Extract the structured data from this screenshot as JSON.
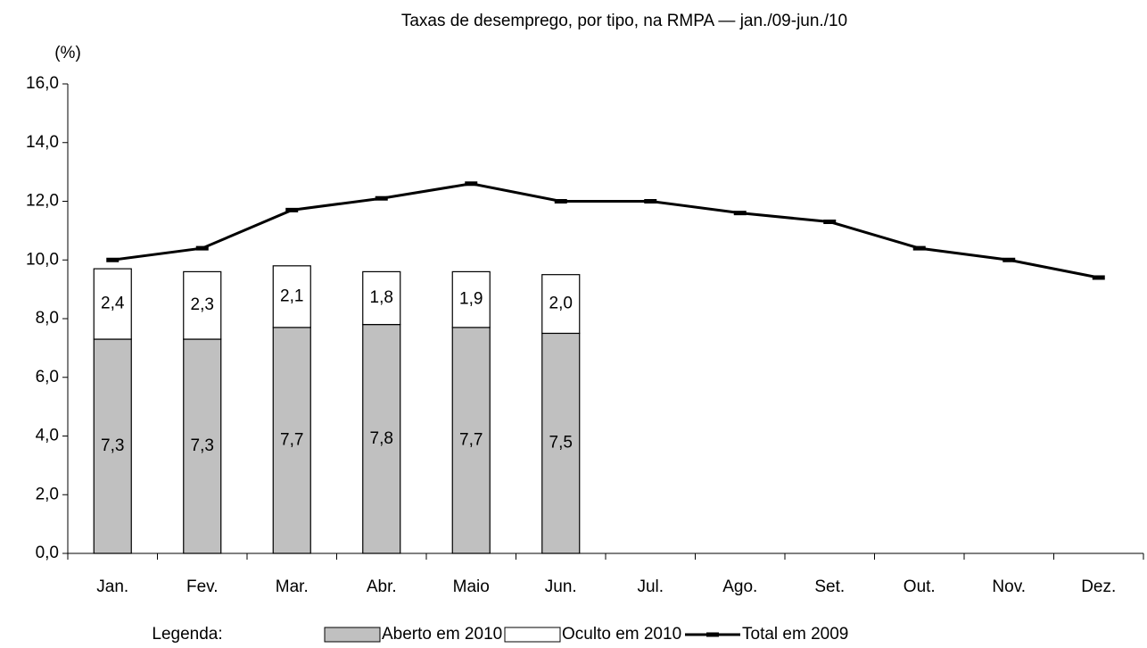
{
  "chart_data": {
    "type": "bar",
    "stacked": true,
    "title": "Taxas de desemprego, por tipo, na RMPA — jan./09-jun./10",
    "y_label": "(%)",
    "legend_title": "Legenda:",
    "legend_position": "bottom",
    "categories": [
      "Jan.",
      "Fev.",
      "Mar.",
      "Abr.",
      "Maio",
      "Jun.",
      "Jul.",
      "Ago.",
      "Set.",
      "Out.",
      "Nov.",
      "Dez."
    ],
    "series": [
      {
        "name": "Aberto em 2010",
        "type": "bar",
        "color": "#c0c0c0",
        "values": [
          7.3,
          7.3,
          7.7,
          7.8,
          7.7,
          7.5,
          null,
          null,
          null,
          null,
          null,
          null
        ],
        "value_labels": [
          "7,3",
          "7,3",
          "7,7",
          "7,8",
          "7,7",
          "7,5",
          null,
          null,
          null,
          null,
          null,
          null
        ]
      },
      {
        "name": "Oculto em 2010",
        "type": "bar",
        "color": "#ffffff",
        "values": [
          2.4,
          2.3,
          2.1,
          1.8,
          1.9,
          2.0,
          null,
          null,
          null,
          null,
          null,
          null
        ],
        "value_labels": [
          "2,4",
          "2,3",
          "2,1",
          "1,8",
          "1,9",
          "2,0",
          null,
          null,
          null,
          null,
          null,
          null
        ]
      },
      {
        "name": "Total em 2009",
        "type": "line",
        "color": "#000000",
        "values": [
          10.0,
          10.4,
          11.7,
          12.1,
          12.6,
          12.0,
          12.0,
          11.6,
          11.3,
          10.4,
          10.0,
          9.4
        ]
      }
    ],
    "ylim": [
      0,
      16
    ],
    "yticks": [
      {
        "value": 0,
        "label": "0,0"
      },
      {
        "value": 2,
        "label": "2,0"
      },
      {
        "value": 4,
        "label": "4,0"
      },
      {
        "value": 6,
        "label": "6,0"
      },
      {
        "value": 8,
        "label": "8,0"
      },
      {
        "value": 10,
        "label": "10,0"
      },
      {
        "value": 12,
        "label": "12,0"
      },
      {
        "value": 14,
        "label": "14,0"
      },
      {
        "value": 16,
        "label": "16,0"
      }
    ],
    "grid": false
  }
}
